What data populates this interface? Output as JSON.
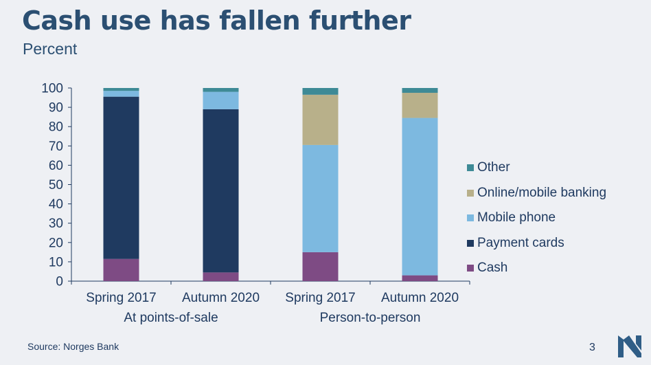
{
  "slide": {
    "title": "Cash use has fallen further",
    "subtitle": "Percent",
    "source": "Source: Norges Bank",
    "page_number": "3"
  },
  "colors": {
    "Other": "#3e8a96",
    "Online/mobile banking": "#b8b08a",
    "Mobile phone": "#7db9e0",
    "Payment cards": "#1f3a60",
    "Cash": "#7e4b84",
    "text": "#1f3a60",
    "logo": "#2f5d86"
  },
  "chart_data": {
    "type": "bar",
    "stacked": true,
    "categories": [
      "Spring 2017",
      "Autumn 2020",
      "Spring 2017",
      "Autumn 2020"
    ],
    "groups": [
      {
        "label": "At points-of-sale",
        "categories": [
          0,
          1
        ]
      },
      {
        "label": "Person-to-person",
        "categories": [
          2,
          3
        ]
      }
    ],
    "series": [
      {
        "name": "Cash",
        "values": [
          11.5,
          4.5,
          15,
          3
        ]
      },
      {
        "name": "Payment cards",
        "values": [
          84,
          84.5,
          0,
          0
        ]
      },
      {
        "name": "Mobile phone",
        "values": [
          3,
          9,
          55.5,
          81.5
        ]
      },
      {
        "name": "Online/mobile banking",
        "values": [
          0,
          0,
          26,
          13
        ]
      },
      {
        "name": "Other",
        "values": [
          1.5,
          2,
          3.5,
          2.5
        ]
      }
    ],
    "legend_order": [
      "Other",
      "Online/mobile banking",
      "Mobile phone",
      "Payment cards",
      "Cash"
    ],
    "ylim": [
      0,
      100
    ],
    "yticks": [
      0,
      10,
      20,
      30,
      40,
      50,
      60,
      70,
      80,
      90,
      100
    ],
    "legend_position": "right",
    "grid": false
  }
}
